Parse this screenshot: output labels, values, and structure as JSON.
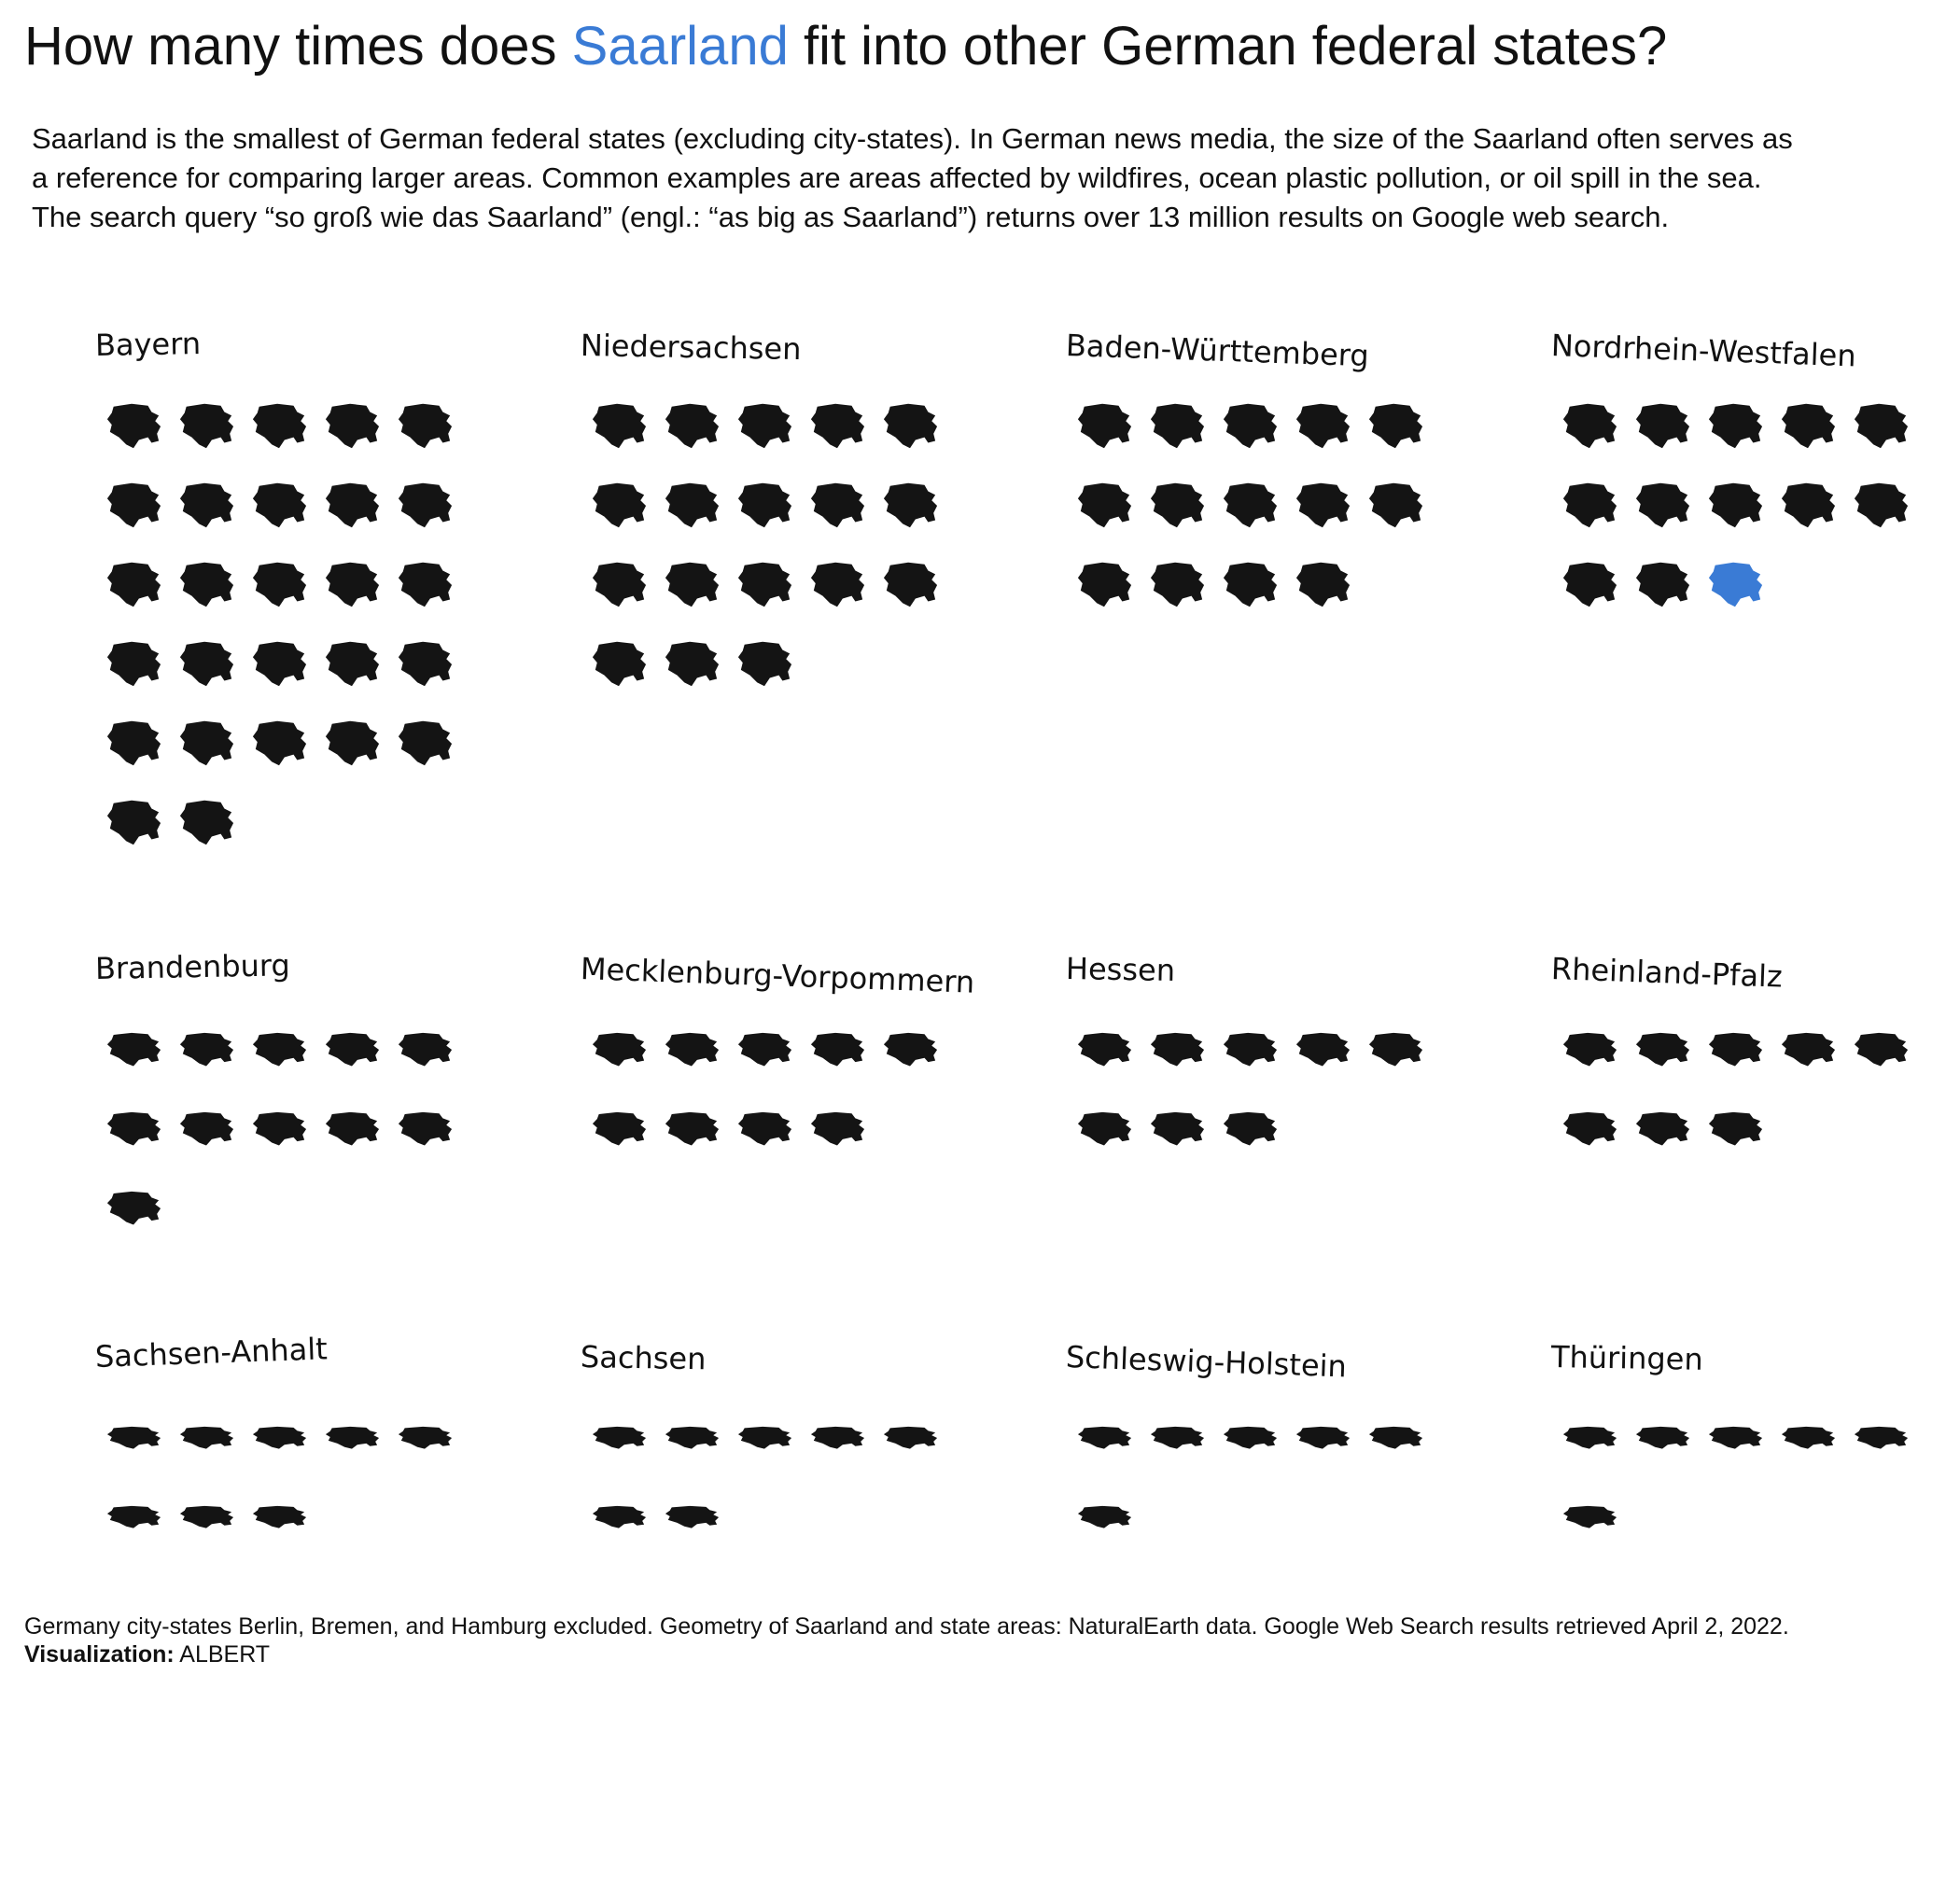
{
  "title": {
    "prefix": "How many times does ",
    "highlight": "Saarland",
    "suffix": " fit into other German federal states?"
  },
  "subtitle": {
    "line1": "Saarland is the smallest of German federal states (excluding city-states). In German news media, the size of the Saarland often serves as",
    "line2": "a reference for comparing larger areas. Common examples are areas affected by wildfires, ocean plastic pollution, or oil spill in the sea.",
    "line3": "The search query “so groß wie das Saarland” (engl.: “as big as Saarland”) returns over 13 million results on Google web search."
  },
  "colors": {
    "icon": "#141414",
    "highlight": "#3A7BD5"
  },
  "chart_data": {
    "type": "icon-array",
    "title": "How many times does Saarland fit into other German federal states?",
    "unit": "Saarland area",
    "icon_shapes_in_order": [
      "tall",
      "tall",
      "tall",
      "tall",
      "medium",
      "medium",
      "medium",
      "medium",
      "flat",
      "flat",
      "flat",
      "flat"
    ],
    "states": [
      {
        "name": "Bayern",
        "count": 27
      },
      {
        "name": "Niedersachsen",
        "count": 18
      },
      {
        "name": "Baden-Württemberg",
        "count": 14
      },
      {
        "name": "Nordrhein-Westfalen",
        "count": 13,
        "highlight_index": 12
      },
      {
        "name": "Brandenburg",
        "count": 11
      },
      {
        "name": "Mecklenburg-Vorpommern",
        "count": 9
      },
      {
        "name": "Hessen",
        "count": 8
      },
      {
        "name": "Rheinland-Pfalz",
        "count": 8
      },
      {
        "name": "Sachsen-Anhalt",
        "count": 8
      },
      {
        "name": "Sachsen",
        "count": 7
      },
      {
        "name": "Schleswig-Holstein",
        "count": 6
      },
      {
        "name": "Thüringen",
        "count": 6
      }
    ]
  },
  "footer": {
    "note": "Germany city-states Berlin, Bremen, and Hamburg excluded. Geometry of Saarland and state areas: NaturalEarth data. Google Web Search results retrieved April 2, 2022.",
    "viz_label": "Visualization:",
    "viz_name": "ALBERT"
  }
}
